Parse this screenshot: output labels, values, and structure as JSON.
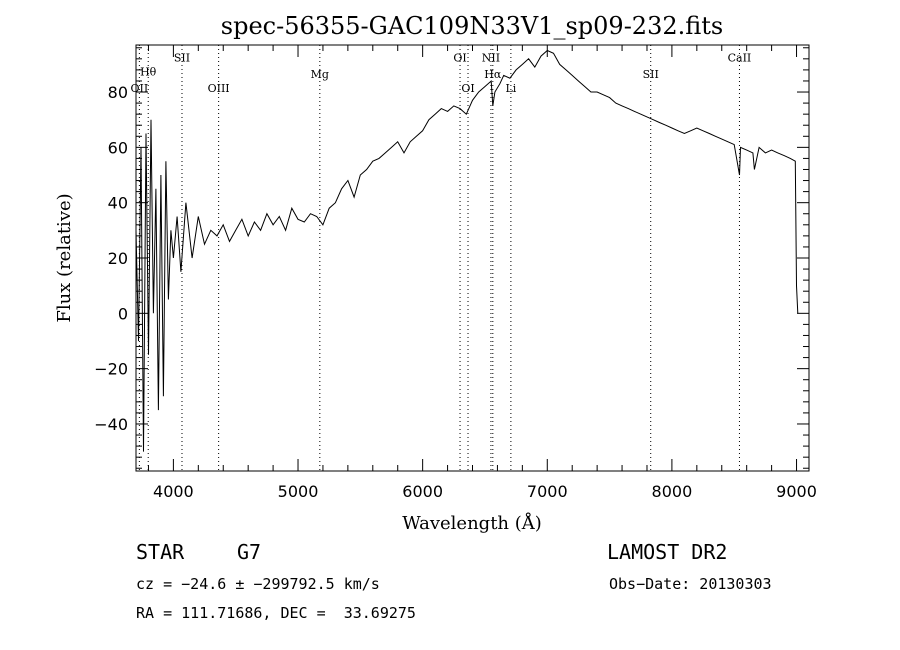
{
  "chart_data": {
    "type": "line",
    "title": "spec-56355-GAC109N33V1_sp09-232.fits",
    "xlabel": "Wavelength (Å)",
    "ylabel": "Flux (relative)",
    "xlim": [
      3700,
      9100
    ],
    "ylim": [
      -57,
      97
    ],
    "x_ticks": [
      4000,
      5000,
      6000,
      7000,
      8000,
      9000
    ],
    "y_ticks": [
      -40,
      -20,
      0,
      20,
      40,
      60,
      80
    ],
    "x_tick_labels": [
      "4000",
      "5000",
      "6000",
      "7000",
      "8000",
      "9000"
    ],
    "y_tick_labels": [
      "−40",
      "−20",
      "0",
      "20",
      "40",
      "60",
      "80"
    ],
    "grid": false,
    "series": [
      {
        "color": "#000000",
        "x": [
          3700,
          3720,
          3740,
          3760,
          3780,
          3800,
          3820,
          3840,
          3860,
          3880,
          3900,
          3920,
          3940,
          3960,
          3980,
          4000,
          4030,
          4060,
          4100,
          4150,
          4200,
          4250,
          4300,
          4350,
          4400,
          4450,
          4500,
          4550,
          4600,
          4650,
          4700,
          4750,
          4800,
          4850,
          4900,
          4950,
          5000,
          5050,
          5100,
          5150,
          5200,
          5250,
          5300,
          5350,
          5400,
          5450,
          5500,
          5550,
          5600,
          5650,
          5700,
          5750,
          5800,
          5850,
          5900,
          5950,
          6000,
          6050,
          6100,
          6150,
          6200,
          6250,
          6300,
          6350,
          6400,
          6450,
          6500,
          6550,
          6563,
          6580,
          6620,
          6650,
          6700,
          6750,
          6800,
          6850,
          6900,
          6950,
          7000,
          7050,
          7100,
          7150,
          7200,
          7250,
          7300,
          7350,
          7400,
          7450,
          7500,
          7550,
          7600,
          7650,
          7700,
          7750,
          7800,
          7850,
          7900,
          7950,
          8000,
          8050,
          8100,
          8150,
          8200,
          8250,
          8300,
          8350,
          8400,
          8450,
          8500,
          8542,
          8550,
          8600,
          8650,
          8662,
          8700,
          8750,
          8800,
          8850,
          8900,
          8950,
          8990,
          9000,
          9010
        ],
        "y": [
          30,
          -10,
          60,
          -50,
          65,
          -15,
          70,
          0,
          45,
          -35,
          50,
          -30,
          55,
          5,
          30,
          20,
          35,
          15,
          40,
          20,
          35,
          25,
          30,
          28,
          32,
          26,
          30,
          34,
          28,
          33,
          30,
          36,
          32,
          35,
          30,
          38,
          34,
          33,
          36,
          35,
          32,
          38,
          40,
          45,
          48,
          42,
          50,
          52,
          55,
          56,
          58,
          60,
          62,
          58,
          62,
          64,
          66,
          70,
          72,
          74,
          73,
          75,
          74,
          72,
          77,
          80,
          82,
          84,
          75,
          80,
          83,
          86,
          85,
          88,
          90,
          92,
          89,
          93,
          95,
          94,
          90,
          88,
          86,
          84,
          82,
          80,
          80,
          79,
          78,
          76,
          75,
          74,
          73,
          72,
          71,
          70,
          69,
          68,
          67,
          66,
          65,
          66,
          67,
          66,
          65,
          64,
          63,
          62,
          61,
          50,
          60,
          59,
          58,
          52,
          60,
          58,
          59,
          58,
          57,
          56,
          55,
          10,
          0
        ]
      }
    ],
    "line_markers": [
      {
        "label": "Hθ",
        "x": 3798,
        "label_y": 86
      },
      {
        "label": "OII",
        "x": 3727,
        "label_y": 80
      },
      {
        "label": "SII",
        "x": 4069,
        "label_y": 91
      },
      {
        "label": "OIII",
        "x": 4363,
        "label_y": 80
      },
      {
        "label": "Mg",
        "x": 5175,
        "label_y": 85
      },
      {
        "label": "OI",
        "x": 6300,
        "label_y": 91
      },
      {
        "label": "OI",
        "x": 6364,
        "label_y": 80
      },
      {
        "label": "NII",
        "x": 6548,
        "label_y": 91
      },
      {
        "label": "Hα",
        "x": 6563,
        "label_y": 85
      },
      {
        "label": "Li",
        "x": 6708,
        "label_y": 80
      },
      {
        "label": "SII",
        "x": 7830,
        "label_y": 85
      },
      {
        "label": "CaII",
        "x": 8542,
        "label_y": 91
      }
    ]
  },
  "info": {
    "class_label": "STAR",
    "subclass_label": "G7",
    "survey": "LAMOST DR2",
    "cz": "cz = −24.6 ± −299792.5 km/s",
    "obs_date": "Obs−Date: 20130303",
    "radec": "RA = 111.71686, DEC =  33.69275"
  }
}
